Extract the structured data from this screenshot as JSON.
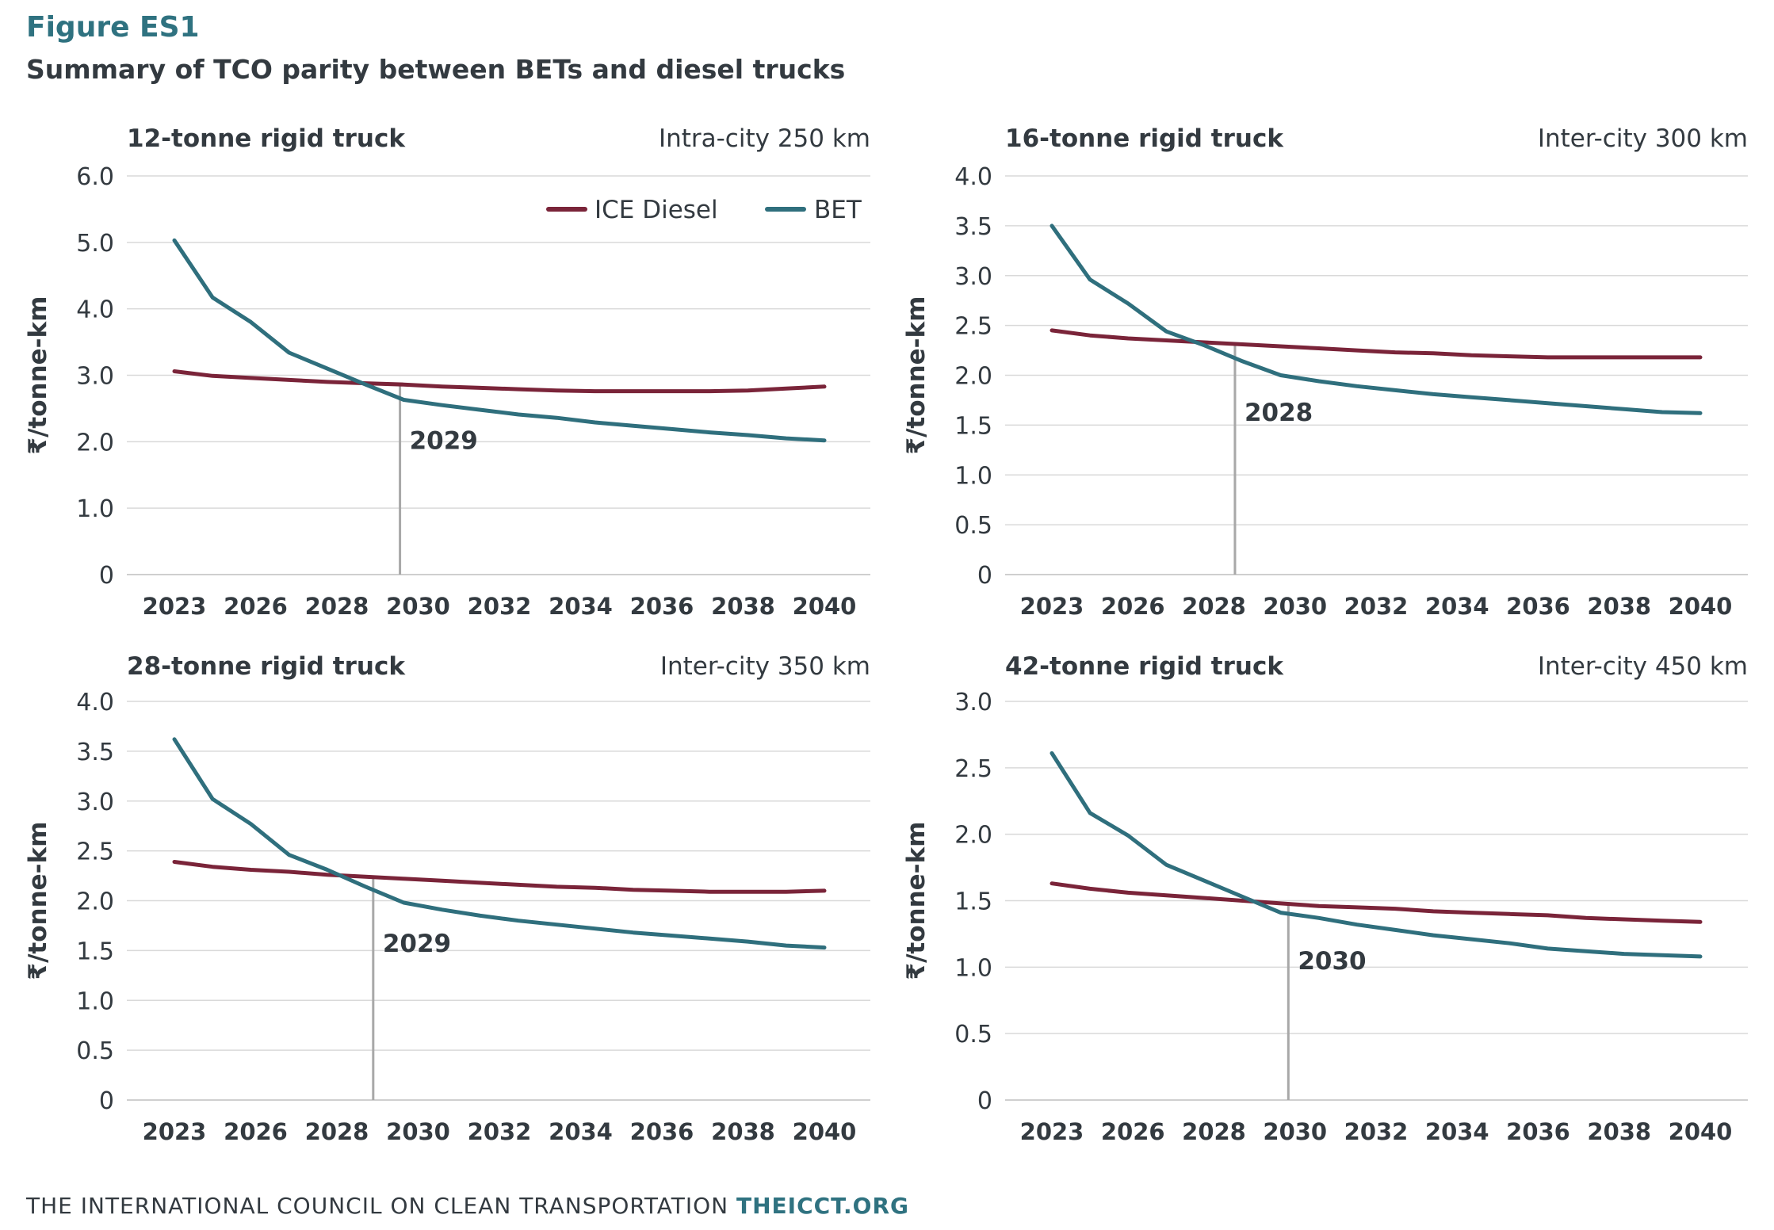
{
  "figure_label": "Figure ES1",
  "figure_title": "Summary of TCO parity between BETs and diesel trucks",
  "footer": {
    "org": "THE INTERNATIONAL COUNCIL ON CLEAN TRANSPORTATION",
    "site": "THEICCT.ORG"
  },
  "colors": {
    "ice_diesel": "#7a2439",
    "bet": "#2f6f7d",
    "grid": "#d9d9d9",
    "parity_line": "#a8a8a8",
    "text": "#333a40",
    "accent": "#2f7280"
  },
  "chart_data": [
    {
      "type": "line",
      "title": "12-tonne rigid truck",
      "subtitle": "Intra-city 250 km",
      "ylabel": "₹/tonne-km",
      "ylim": [
        0,
        6.0
      ],
      "yticks": [
        "0",
        "1.0",
        "2.0",
        "3.0",
        "4.0",
        "5.0",
        "6.0"
      ],
      "xticks": [
        "2023",
        "2026",
        "2028",
        "2030",
        "2032",
        "2034",
        "2036",
        "2038",
        "2040"
      ],
      "legend": {
        "placement": "top-right",
        "entries": [
          "ICE Diesel",
          "BET"
        ]
      },
      "parity": {
        "year": 2028.9,
        "value": 2.87,
        "label": "2029"
      },
      "series": [
        {
          "name": "ICE Diesel",
          "x": [
            2023,
            2024,
            2025,
            2026,
            2027,
            2028,
            2029,
            2030,
            2031,
            2032,
            2033,
            2034,
            2035,
            2036,
            2037,
            2038,
            2039,
            2040
          ],
          "values": [
            3.06,
            2.99,
            2.96,
            2.93,
            2.9,
            2.88,
            2.86,
            2.83,
            2.81,
            2.79,
            2.77,
            2.76,
            2.76,
            2.76,
            2.76,
            2.77,
            2.8,
            2.83
          ]
        },
        {
          "name": "BET",
          "x": [
            2023,
            2024,
            2025,
            2026,
            2027,
            2028,
            2029,
            2030,
            2031,
            2032,
            2033,
            2034,
            2035,
            2036,
            2037,
            2038,
            2039,
            2040
          ],
          "values": [
            5.03,
            4.17,
            3.8,
            3.34,
            3.1,
            2.86,
            2.63,
            2.55,
            2.48,
            2.41,
            2.36,
            2.29,
            2.24,
            2.19,
            2.14,
            2.1,
            2.05,
            2.02
          ]
        }
      ]
    },
    {
      "type": "line",
      "title": "16-tonne rigid truck",
      "subtitle": "Inter-city 300 km",
      "ylabel": "₹/tonne-km",
      "ylim": [
        0,
        4.0
      ],
      "yticks": [
        "0",
        "0.5",
        "1.0",
        "1.5",
        "2.0",
        "2.5",
        "3.0",
        "3.5",
        "4.0"
      ],
      "xticks": [
        "2023",
        "2026",
        "2028",
        "2030",
        "2032",
        "2034",
        "2036",
        "2038",
        "2040"
      ],
      "parity": {
        "year": 2027.8,
        "value": 2.32,
        "label": "2028"
      },
      "series": [
        {
          "name": "ICE Diesel",
          "x": [
            2023,
            2024,
            2025,
            2026,
            2027,
            2028,
            2029,
            2030,
            2031,
            2032,
            2033,
            2034,
            2035,
            2036,
            2037,
            2038,
            2039,
            2040
          ],
          "values": [
            2.45,
            2.4,
            2.37,
            2.35,
            2.33,
            2.31,
            2.29,
            2.27,
            2.25,
            2.23,
            2.22,
            2.2,
            2.19,
            2.18,
            2.18,
            2.18,
            2.18,
            2.18
          ]
        },
        {
          "name": "BET",
          "x": [
            2023,
            2024,
            2025,
            2026,
            2027,
            2028,
            2029,
            2030,
            2031,
            2032,
            2033,
            2034,
            2035,
            2036,
            2037,
            2038,
            2039,
            2040
          ],
          "values": [
            3.5,
            2.96,
            2.72,
            2.44,
            2.3,
            2.14,
            2.0,
            1.94,
            1.89,
            1.85,
            1.81,
            1.78,
            1.75,
            1.72,
            1.69,
            1.66,
            1.63,
            1.62
          ]
        }
      ]
    },
    {
      "type": "line",
      "title": "28-tonne rigid truck",
      "subtitle": "Inter-city 350 km",
      "ylabel": "₹/tonne-km",
      "ylim": [
        0,
        4.0
      ],
      "yticks": [
        "0",
        "0.5",
        "1.0",
        "1.5",
        "2.0",
        "2.5",
        "3.0",
        "3.5",
        "4.0"
      ],
      "xticks": [
        "2023",
        "2026",
        "2028",
        "2030",
        "2032",
        "2034",
        "2036",
        "2038",
        "2040"
      ],
      "parity": {
        "year": 2028.2,
        "value": 2.24,
        "label": "2029"
      },
      "series": [
        {
          "name": "ICE Diesel",
          "x": [
            2023,
            2024,
            2025,
            2026,
            2027,
            2028,
            2029,
            2030,
            2031,
            2032,
            2033,
            2034,
            2035,
            2036,
            2037,
            2038,
            2039,
            2040
          ],
          "values": [
            2.39,
            2.34,
            2.31,
            2.29,
            2.26,
            2.24,
            2.22,
            2.2,
            2.18,
            2.16,
            2.14,
            2.13,
            2.11,
            2.1,
            2.09,
            2.09,
            2.09,
            2.1
          ]
        },
        {
          "name": "BET",
          "x": [
            2023,
            2024,
            2025,
            2026,
            2027,
            2028,
            2029,
            2030,
            2031,
            2032,
            2033,
            2034,
            2035,
            2036,
            2037,
            2038,
            2039,
            2040
          ],
          "values": [
            3.62,
            3.02,
            2.77,
            2.46,
            2.31,
            2.14,
            1.98,
            1.91,
            1.85,
            1.8,
            1.76,
            1.72,
            1.68,
            1.65,
            1.62,
            1.59,
            1.55,
            1.53
          ]
        }
      ]
    },
    {
      "type": "line",
      "title": "42-tonne rigid truck",
      "subtitle": "Inter-city 450 km",
      "ylabel": "₹/tonne-km",
      "ylim": [
        0,
        3.0
      ],
      "yticks": [
        "0",
        "0.5",
        "1.0",
        "1.5",
        "2.0",
        "2.5",
        "3.0"
      ],
      "xticks": [
        "2023",
        "2026",
        "2028",
        "2030",
        "2032",
        "2034",
        "2036",
        "2038",
        "2040"
      ],
      "parity": {
        "year": 2029.2,
        "value": 1.49,
        "label": "2030"
      },
      "series": [
        {
          "name": "ICE Diesel",
          "x": [
            2023,
            2024,
            2025,
            2026,
            2027,
            2028,
            2029,
            2030,
            2031,
            2032,
            2033,
            2034,
            2035,
            2036,
            2037,
            2038,
            2039,
            2040
          ],
          "values": [
            1.63,
            1.59,
            1.56,
            1.54,
            1.52,
            1.5,
            1.48,
            1.46,
            1.45,
            1.44,
            1.42,
            1.41,
            1.4,
            1.39,
            1.37,
            1.36,
            1.35,
            1.34
          ]
        },
        {
          "name": "BET",
          "x": [
            2023,
            2024,
            2025,
            2026,
            2027,
            2028,
            2029,
            2030,
            2031,
            2032,
            2033,
            2034,
            2035,
            2036,
            2037,
            2038,
            2039,
            2040
          ],
          "values": [
            2.61,
            2.16,
            1.99,
            1.77,
            1.65,
            1.53,
            1.41,
            1.37,
            1.32,
            1.28,
            1.24,
            1.21,
            1.18,
            1.14,
            1.12,
            1.1,
            1.09,
            1.08
          ]
        }
      ]
    }
  ]
}
